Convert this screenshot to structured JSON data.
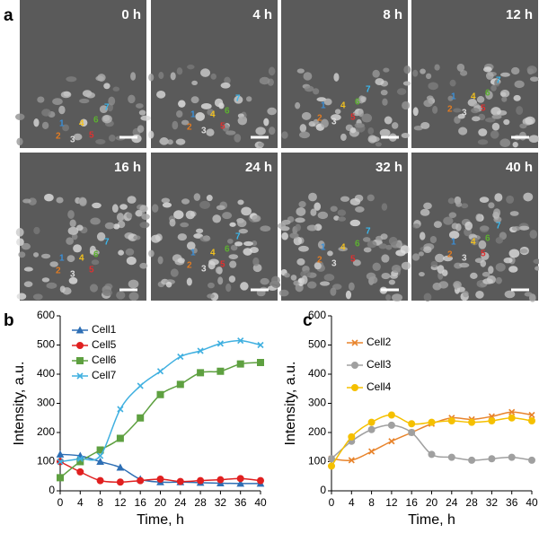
{
  "panel_a": {
    "label": "a",
    "frames": [
      "0 h",
      "4 h",
      "8 h",
      "12 h",
      "16 h",
      "24 h",
      "32 h",
      "40 h"
    ],
    "cell_labels": [
      "1",
      "2",
      "3",
      "4",
      "5",
      "6",
      "7"
    ],
    "cell_colors": [
      "#3a8fd8",
      "#e07b22",
      "#dddddd",
      "#f0c020",
      "#e03030",
      "#5cb030",
      "#3ab8ee"
    ]
  },
  "chart_data": [
    {
      "type": "line",
      "label": "b",
      "xlabel": "Time, h",
      "ylabel": "Intensity, a.u.",
      "x": [
        0,
        4,
        8,
        12,
        16,
        20,
        24,
        28,
        32,
        36,
        40
      ],
      "xlim": [
        0,
        40
      ],
      "xticks": [
        0,
        4,
        8,
        12,
        16,
        20,
        24,
        28,
        32,
        36,
        40
      ],
      "ylim": [
        0,
        600
      ],
      "yticks": [
        0,
        100,
        200,
        300,
        400,
        500,
        600
      ],
      "legend": "top-left",
      "series": [
        {
          "name": "Cell1",
          "color": "#2e6fb5",
          "marker": "triangle",
          "values": [
            125,
            120,
            100,
            80,
            40,
            30,
            30,
            28,
            26,
            25,
            25
          ]
        },
        {
          "name": "Cell5",
          "color": "#e02020",
          "marker": "circle",
          "values": [
            100,
            65,
            35,
            30,
            35,
            40,
            32,
            35,
            38,
            42,
            35
          ]
        },
        {
          "name": "Cell6",
          "color": "#5ea040",
          "marker": "square",
          "values": [
            45,
            100,
            140,
            180,
            250,
            330,
            365,
            405,
            410,
            435,
            440
          ]
        },
        {
          "name": "Cell7",
          "color": "#40b0e0",
          "marker": "cross",
          "values": [
            100,
            110,
            120,
            280,
            360,
            410,
            460,
            480,
            505,
            515,
            500
          ]
        }
      ]
    },
    {
      "type": "line",
      "label": "c",
      "xlabel": "Time, h",
      "ylabel": "Intensity, a.u.",
      "x": [
        0,
        4,
        8,
        12,
        16,
        20,
        24,
        28,
        32,
        36,
        40
      ],
      "xlim": [
        0,
        40
      ],
      "xticks": [
        0,
        4,
        8,
        12,
        16,
        20,
        24,
        28,
        32,
        36,
        40
      ],
      "ylim": [
        0,
        600
      ],
      "yticks": [
        0,
        100,
        200,
        300,
        400,
        500,
        600
      ],
      "legend": "top-left",
      "series": [
        {
          "name": "Cell2",
          "color": "#e8842c",
          "marker": "cross",
          "values": [
            110,
            105,
            135,
            170,
            200,
            230,
            250,
            245,
            255,
            270,
            260
          ]
        },
        {
          "name": "Cell3",
          "color": "#a0a0a0",
          "marker": "circle",
          "values": [
            110,
            170,
            210,
            225,
            200,
            125,
            115,
            105,
            110,
            115,
            105
          ]
        },
        {
          "name": "Cell4",
          "color": "#f5c000",
          "marker": "circle",
          "values": [
            85,
            185,
            235,
            260,
            230,
            235,
            240,
            235,
            240,
            250,
            240
          ]
        }
      ]
    }
  ]
}
